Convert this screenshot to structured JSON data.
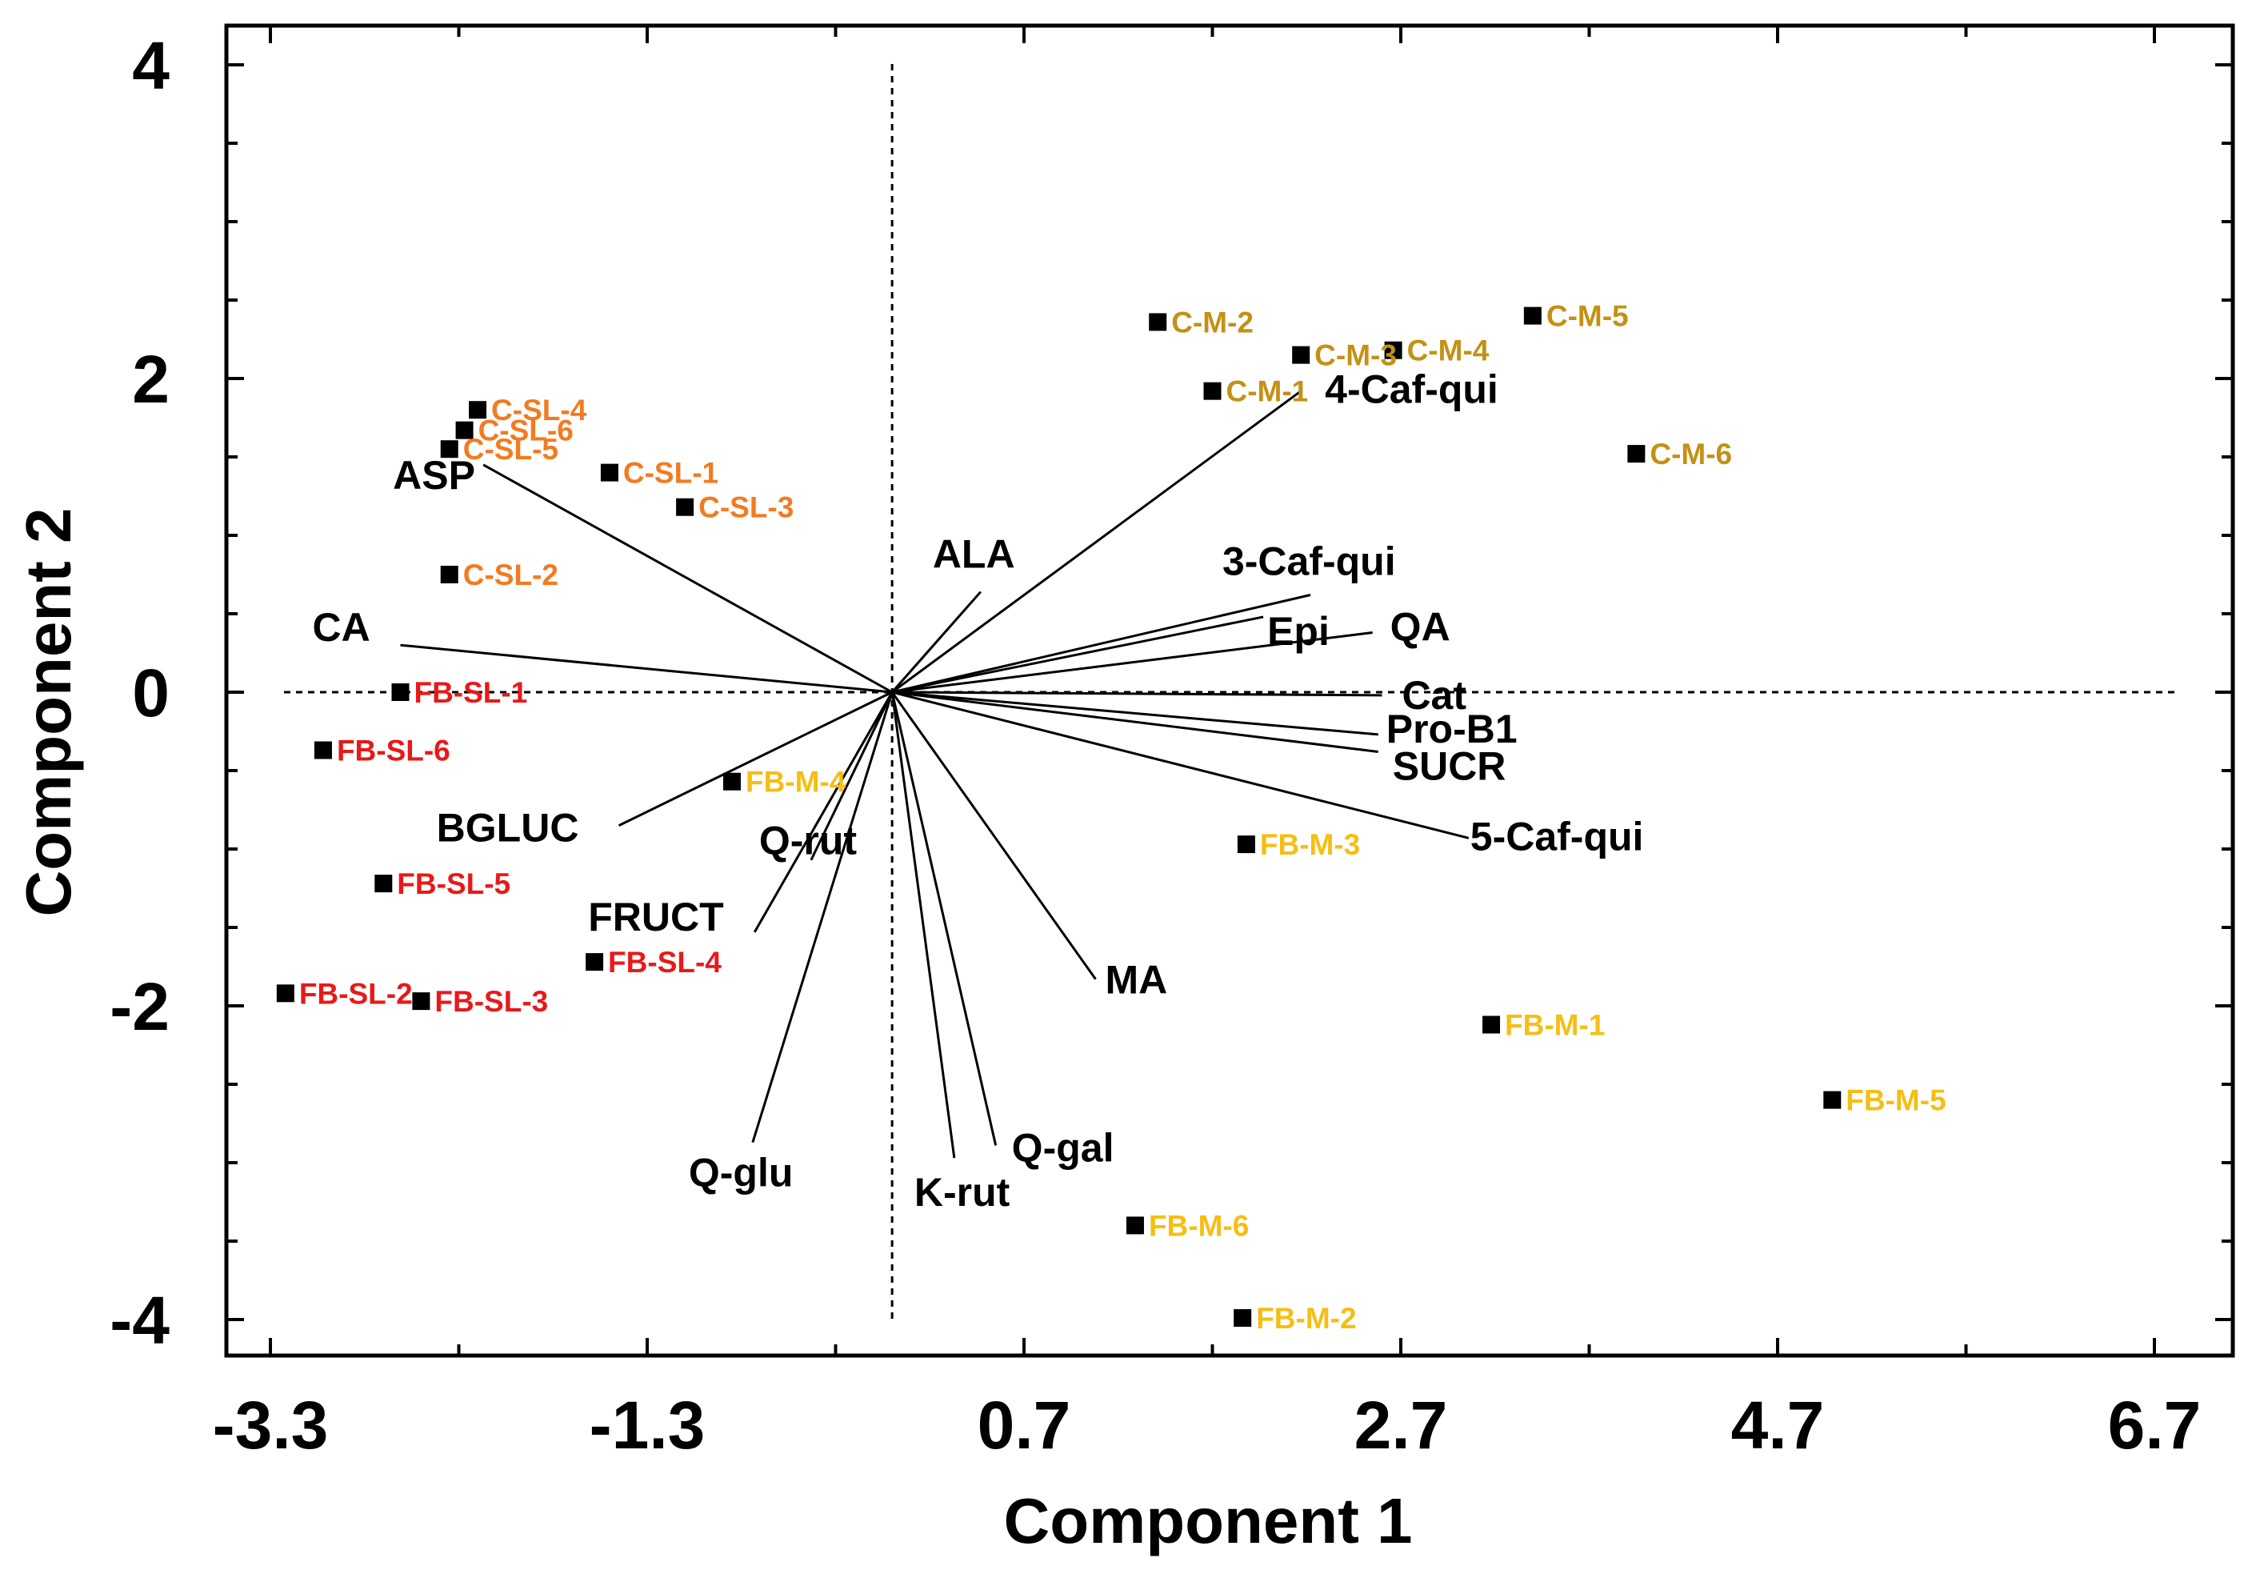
{
  "chart_data": {
    "type": "scatter",
    "subtype": "biplot",
    "title": "",
    "xlabel": "Component 1",
    "ylabel": "Component 2",
    "xlim": [
      -3.3,
      6.7
    ],
    "ylim": [
      -4.2,
      4.2
    ],
    "x_ticks": [
      "-3.3",
      "-1.3",
      "0.7",
      "2.7",
      "4.7",
      "6.7"
    ],
    "x_tick_values": [
      -3.3,
      -1.3,
      0.7,
      2.7,
      4.7,
      6.7
    ],
    "y_ticks": [
      "4",
      "2",
      "0",
      "-2",
      "-4"
    ],
    "y_tick_values": [
      4,
      2,
      0,
      -2,
      -4
    ],
    "grid": false,
    "colors": {
      "C-SL": "#f47a20",
      "C-M": "#c39115",
      "FB-SL": "#e81919",
      "FB-M": "#f5be14",
      "marker": "#000000",
      "vector": "#000000"
    },
    "series": [
      {
        "name": "C-SL",
        "color": "#f47a20",
        "points": [
          {
            "label": "C-SL-1",
            "x": -1.5,
            "y": 1.4
          },
          {
            "label": "C-SL-2",
            "x": -2.35,
            "y": 0.75
          },
          {
            "label": "C-SL-3",
            "x": -1.1,
            "y": 1.18
          },
          {
            "label": "C-SL-4",
            "x": -2.2,
            "y": 1.8
          },
          {
            "label": "C-SL-5",
            "x": -2.35,
            "y": 1.55
          },
          {
            "label": "C-SL-6",
            "x": -2.27,
            "y": 1.67
          }
        ]
      },
      {
        "name": "C-M",
        "color": "#c39115",
        "points": [
          {
            "label": "C-M-1",
            "x": 1.7,
            "y": 1.92
          },
          {
            "label": "C-M-2",
            "x": 1.41,
            "y": 2.36
          },
          {
            "label": "C-M-3",
            "x": 2.17,
            "y": 2.15
          },
          {
            "label": "C-M-4",
            "x": 2.66,
            "y": 2.18
          },
          {
            "label": "C-M-5",
            "x": 3.4,
            "y": 2.4
          },
          {
            "label": "C-M-6",
            "x": 3.95,
            "y": 1.52
          }
        ]
      },
      {
        "name": "FB-SL",
        "color": "#e81919",
        "points": [
          {
            "label": "FB-SL-1",
            "x": -2.61,
            "y": 0.0
          },
          {
            "label": "FB-SL-2",
            "x": -3.22,
            "y": -1.92
          },
          {
            "label": "FB-SL-3",
            "x": -2.5,
            "y": -1.97
          },
          {
            "label": "FB-SL-4",
            "x": -1.58,
            "y": -1.72
          },
          {
            "label": "FB-SL-5",
            "x": -2.7,
            "y": -1.22
          },
          {
            "label": "FB-SL-6",
            "x": -3.02,
            "y": -0.37
          }
        ]
      },
      {
        "name": "FB-M",
        "color": "#f5be14",
        "points": [
          {
            "label": "FB-M-1",
            "x": 3.18,
            "y": -2.12
          },
          {
            "label": "FB-M-2",
            "x": 1.86,
            "y": -3.99
          },
          {
            "label": "FB-M-3",
            "x": 1.88,
            "y": -0.97
          },
          {
            "label": "FB-M-4",
            "x": -0.85,
            "y": -0.57
          },
          {
            "label": "FB-M-5",
            "x": 4.99,
            "y": -2.6
          },
          {
            "label": "FB-M-6",
            "x": 1.29,
            "y": -3.4
          }
        ]
      }
    ],
    "vectors": [
      {
        "label": "ASP",
        "x": -2.17,
        "y": 1.45
      },
      {
        "label": "CA",
        "x": -2.61,
        "y": 0.3
      },
      {
        "label": "BGLUC",
        "x": -1.45,
        "y": -0.85
      },
      {
        "label": "FRUCT",
        "x": -0.73,
        "y": -1.53
      },
      {
        "label": "Q-rut",
        "x": -0.43,
        "y": -1.07
      },
      {
        "label": "Q-glu",
        "x": -0.74,
        "y": -2.87
      },
      {
        "label": "K-rut",
        "x": 0.33,
        "y": -2.97
      },
      {
        "label": "Q-gal",
        "x": 0.55,
        "y": -2.89
      },
      {
        "label": "MA",
        "x": 1.08,
        "y": -1.83
      },
      {
        "label": "5-Caf-qui",
        "x": 3.06,
        "y": -0.93
      },
      {
        "label": "SUCR",
        "x": 2.58,
        "y": -0.38
      },
      {
        "label": "Pro-B1",
        "x": 2.58,
        "y": -0.27
      },
      {
        "label": "Cat",
        "x": 2.6,
        "y": -0.02
      },
      {
        "label": "QA",
        "x": 2.55,
        "y": 0.38
      },
      {
        "label": "Epi",
        "x": 1.97,
        "y": 0.48
      },
      {
        "label": "3-Caf-qui",
        "x": 2.22,
        "y": 0.62
      },
      {
        "label": "4-Caf-qui",
        "x": 2.17,
        "y": 1.92
      },
      {
        "label": "ALA",
        "x": 0.47,
        "y": 0.64
      }
    ]
  }
}
